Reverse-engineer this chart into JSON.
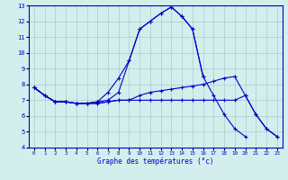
{
  "xlabel": "Graphe des températures (°c)",
  "hours": [
    0,
    1,
    2,
    3,
    4,
    5,
    6,
    7,
    8,
    9,
    10,
    11,
    12,
    13,
    14,
    15,
    16,
    17,
    18,
    19,
    20,
    21,
    22,
    23
  ],
  "line1": [
    7.8,
    7.3,
    6.9,
    6.9,
    6.8,
    6.8,
    6.9,
    7.0,
    7.5,
    9.5,
    11.5,
    12.0,
    12.5,
    12.9,
    12.3,
    11.5,
    8.5,
    null,
    null,
    null,
    null,
    null,
    null,
    null
  ],
  "line2": [
    7.8,
    7.3,
    6.9,
    6.9,
    6.8,
    6.8,
    6.9,
    7.5,
    8.4,
    9.5,
    11.5,
    12.0,
    12.5,
    12.9,
    12.3,
    11.5,
    8.5,
    7.3,
    6.1,
    5.2,
    4.7,
    null,
    null,
    null
  ],
  "line3": [
    7.8,
    7.3,
    6.9,
    6.9,
    6.8,
    6.8,
    6.8,
    6.9,
    7.0,
    7.0,
    7.3,
    7.5,
    7.6,
    7.7,
    7.8,
    7.9,
    8.0,
    8.2,
    8.4,
    8.5,
    7.3,
    6.1,
    5.2,
    4.7
  ],
  "line4": [
    7.8,
    7.3,
    6.9,
    6.9,
    6.8,
    6.8,
    6.8,
    6.9,
    7.0,
    7.0,
    7.0,
    7.0,
    7.0,
    7.0,
    7.0,
    7.0,
    7.0,
    7.0,
    7.0,
    7.0,
    7.3,
    6.1,
    5.2,
    4.7
  ],
  "bg_color": "#d4eeee",
  "line_color": "#0000cc",
  "grid_color": "#aacccc",
  "ylim": [
    4,
    13
  ],
  "xlim": [
    -0.5,
    23.5
  ],
  "yticks": [
    4,
    5,
    6,
    7,
    8,
    9,
    10,
    11,
    12,
    13
  ],
  "xticks": [
    0,
    1,
    2,
    3,
    4,
    5,
    6,
    7,
    8,
    9,
    10,
    11,
    12,
    13,
    14,
    15,
    16,
    17,
    18,
    19,
    20,
    21,
    22,
    23
  ]
}
